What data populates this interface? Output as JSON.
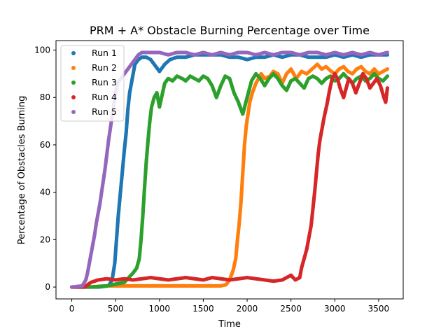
{
  "chart_data": {
    "type": "scatter",
    "title": "PRM + A* Obstacle Burning Percentage over Time",
    "xlabel": "Time",
    "ylabel": "Percentage of Obstacles Burning",
    "xlim": [
      -180,
      3780
    ],
    "ylim": [
      -5,
      104
    ],
    "xticks": [
      0,
      500,
      1000,
      1500,
      2000,
      2500,
      3000,
      3500
    ],
    "yticks": [
      0,
      20,
      40,
      60,
      80,
      100
    ],
    "grid": false,
    "legend": "upper left",
    "series": [
      {
        "name": "Run 1",
        "color": "#1f77b4",
        "points": [
          [
            0,
            0
          ],
          [
            160,
            0
          ],
          [
            300,
            0
          ],
          [
            420,
            0.5
          ],
          [
            460,
            3
          ],
          [
            490,
            10
          ],
          [
            510,
            20
          ],
          [
            530,
            30
          ],
          [
            550,
            38
          ],
          [
            575,
            48
          ],
          [
            600,
            58
          ],
          [
            620,
            65
          ],
          [
            640,
            75
          ],
          [
            660,
            82
          ],
          [
            680,
            86
          ],
          [
            700,
            90
          ],
          [
            720,
            94
          ],
          [
            760,
            96
          ],
          [
            800,
            97
          ],
          [
            850,
            97
          ],
          [
            900,
            96
          ],
          [
            960,
            93
          ],
          [
            1000,
            91
          ],
          [
            1060,
            94
          ],
          [
            1120,
            96
          ],
          [
            1200,
            97
          ],
          [
            1300,
            97
          ],
          [
            1400,
            98
          ],
          [
            1500,
            98
          ],
          [
            1600,
            98
          ],
          [
            1700,
            98
          ],
          [
            1800,
            97
          ],
          [
            1900,
            97
          ],
          [
            2000,
            96
          ],
          [
            2100,
            97
          ],
          [
            2200,
            97
          ],
          [
            2300,
            98
          ],
          [
            2400,
            97
          ],
          [
            2500,
            98
          ],
          [
            2600,
            98
          ],
          [
            2700,
            97
          ],
          [
            2800,
            97
          ],
          [
            2900,
            97
          ],
          [
            3000,
            98
          ],
          [
            3100,
            97
          ],
          [
            3200,
            98
          ],
          [
            3300,
            97
          ],
          [
            3400,
            98
          ],
          [
            3500,
            98
          ],
          [
            3600,
            98
          ]
        ]
      },
      {
        "name": "Run 2",
        "color": "#ff7f0e",
        "points": [
          [
            0,
            0
          ],
          [
            200,
            0
          ],
          [
            400,
            0.5
          ],
          [
            600,
            0.5
          ],
          [
            800,
            0.5
          ],
          [
            1000,
            0.5
          ],
          [
            1200,
            0.5
          ],
          [
            1400,
            0.5
          ],
          [
            1600,
            0.5
          ],
          [
            1700,
            0.5
          ],
          [
            1760,
            1
          ],
          [
            1800,
            3
          ],
          [
            1840,
            7
          ],
          [
            1870,
            12
          ],
          [
            1890,
            20
          ],
          [
            1910,
            27
          ],
          [
            1930,
            36
          ],
          [
            1950,
            48
          ],
          [
            1970,
            60
          ],
          [
            1990,
            68
          ],
          [
            2010,
            73
          ],
          [
            2030,
            78
          ],
          [
            2060,
            82
          ],
          [
            2100,
            86
          ],
          [
            2160,
            90
          ],
          [
            2200,
            88
          ],
          [
            2260,
            89
          ],
          [
            2300,
            91
          ],
          [
            2350,
            90
          ],
          [
            2400,
            86
          ],
          [
            2450,
            90
          ],
          [
            2500,
            92
          ],
          [
            2560,
            88
          ],
          [
            2620,
            91
          ],
          [
            2680,
            90
          ],
          [
            2740,
            92
          ],
          [
            2800,
            94
          ],
          [
            2850,
            92
          ],
          [
            2900,
            93
          ],
          [
            2960,
            91
          ],
          [
            3000,
            90
          ],
          [
            3050,
            92
          ],
          [
            3100,
            93
          ],
          [
            3150,
            91
          ],
          [
            3200,
            90
          ],
          [
            3250,
            92
          ],
          [
            3300,
            93
          ],
          [
            3350,
            91
          ],
          [
            3400,
            90
          ],
          [
            3450,
            92
          ],
          [
            3500,
            90
          ],
          [
            3550,
            91
          ],
          [
            3600,
            92
          ]
        ]
      },
      {
        "name": "Run 3",
        "color": "#2ca02c",
        "points": [
          [
            0,
            0
          ],
          [
            200,
            0
          ],
          [
            400,
            0.5
          ],
          [
            600,
            2
          ],
          [
            650,
            4
          ],
          [
            700,
            6
          ],
          [
            740,
            8
          ],
          [
            770,
            12
          ],
          [
            790,
            20
          ],
          [
            810,
            30
          ],
          [
            830,
            42
          ],
          [
            850,
            53
          ],
          [
            870,
            62
          ],
          [
            890,
            70
          ],
          [
            910,
            76
          ],
          [
            940,
            80
          ],
          [
            970,
            82
          ],
          [
            1000,
            76
          ],
          [
            1030,
            81
          ],
          [
            1060,
            86
          ],
          [
            1100,
            88
          ],
          [
            1150,
            87
          ],
          [
            1200,
            89
          ],
          [
            1260,
            88
          ],
          [
            1300,
            87
          ],
          [
            1350,
            89
          ],
          [
            1400,
            88
          ],
          [
            1450,
            87
          ],
          [
            1500,
            89
          ],
          [
            1550,
            88
          ],
          [
            1600,
            85
          ],
          [
            1650,
            80
          ],
          [
            1700,
            85
          ],
          [
            1750,
            89
          ],
          [
            1800,
            88
          ],
          [
            1850,
            82
          ],
          [
            1900,
            78
          ],
          [
            1950,
            73
          ],
          [
            2000,
            80
          ],
          [
            2050,
            87
          ],
          [
            2100,
            90
          ],
          [
            2150,
            88
          ],
          [
            2200,
            85
          ],
          [
            2250,
            88
          ],
          [
            2300,
            90
          ],
          [
            2350,
            88
          ],
          [
            2400,
            85
          ],
          [
            2450,
            83
          ],
          [
            2500,
            87
          ],
          [
            2550,
            88
          ],
          [
            2600,
            86
          ],
          [
            2650,
            84
          ],
          [
            2700,
            88
          ],
          [
            2750,
            89
          ],
          [
            2800,
            88
          ],
          [
            2850,
            86
          ],
          [
            2900,
            88
          ],
          [
            2950,
            89
          ],
          [
            3000,
            87
          ],
          [
            3050,
            88
          ],
          [
            3100,
            90
          ],
          [
            3150,
            88
          ],
          [
            3200,
            86
          ],
          [
            3250,
            88
          ],
          [
            3300,
            89
          ],
          [
            3350,
            87
          ],
          [
            3400,
            88
          ],
          [
            3450,
            90
          ],
          [
            3500,
            88
          ],
          [
            3550,
            87
          ],
          [
            3600,
            89
          ]
        ]
      },
      {
        "name": "Run 4",
        "color": "#d62728",
        "points": [
          [
            0,
            0
          ],
          [
            150,
            0
          ],
          [
            180,
            1
          ],
          [
            220,
            2
          ],
          [
            300,
            3
          ],
          [
            400,
            3.5
          ],
          [
            500,
            3
          ],
          [
            600,
            3.5
          ],
          [
            700,
            3
          ],
          [
            800,
            3.5
          ],
          [
            900,
            4
          ],
          [
            1000,
            3.5
          ],
          [
            1100,
            3
          ],
          [
            1200,
            3.5
          ],
          [
            1300,
            4
          ],
          [
            1400,
            3.5
          ],
          [
            1500,
            3
          ],
          [
            1600,
            4
          ],
          [
            1700,
            3.5
          ],
          [
            1800,
            3
          ],
          [
            1900,
            3.5
          ],
          [
            2000,
            4
          ],
          [
            2100,
            3.5
          ],
          [
            2200,
            3
          ],
          [
            2300,
            2.5
          ],
          [
            2400,
            3
          ],
          [
            2450,
            4
          ],
          [
            2500,
            5
          ],
          [
            2550,
            3
          ],
          [
            2600,
            4
          ],
          [
            2620,
            8
          ],
          [
            2650,
            12
          ],
          [
            2680,
            16
          ],
          [
            2700,
            20
          ],
          [
            2730,
            26
          ],
          [
            2750,
            33
          ],
          [
            2770,
            40
          ],
          [
            2790,
            48
          ],
          [
            2810,
            56
          ],
          [
            2830,
            62
          ],
          [
            2860,
            68
          ],
          [
            2880,
            72
          ],
          [
            2910,
            77
          ],
          [
            2940,
            83
          ],
          [
            2970,
            88
          ],
          [
            3000,
            90
          ],
          [
            3030,
            88
          ],
          [
            3060,
            84
          ],
          [
            3100,
            80
          ],
          [
            3130,
            84
          ],
          [
            3160,
            88
          ],
          [
            3200,
            86
          ],
          [
            3240,
            82
          ],
          [
            3280,
            86
          ],
          [
            3320,
            90
          ],
          [
            3360,
            88
          ],
          [
            3400,
            84
          ],
          [
            3440,
            86
          ],
          [
            3480,
            88
          ],
          [
            3520,
            85
          ],
          [
            3560,
            80
          ],
          [
            3580,
            78
          ],
          [
            3600,
            84
          ]
        ]
      },
      {
        "name": "Run 5",
        "color": "#9467bd",
        "points": [
          [
            0,
            0
          ],
          [
            120,
            0.5
          ],
          [
            160,
            3
          ],
          [
            180,
            6
          ],
          [
            200,
            10
          ],
          [
            220,
            14
          ],
          [
            240,
            18
          ],
          [
            260,
            22
          ],
          [
            280,
            27
          ],
          [
            300,
            31
          ],
          [
            320,
            35
          ],
          [
            340,
            40
          ],
          [
            360,
            45
          ],
          [
            380,
            50
          ],
          [
            400,
            56
          ],
          [
            420,
            62
          ],
          [
            440,
            67
          ],
          [
            460,
            72
          ],
          [
            480,
            77
          ],
          [
            500,
            82
          ],
          [
            520,
            86
          ],
          [
            560,
            88
          ],
          [
            600,
            90
          ],
          [
            640,
            92
          ],
          [
            680,
            94
          ],
          [
            720,
            96
          ],
          [
            760,
            98
          ],
          [
            800,
            99
          ],
          [
            900,
            99
          ],
          [
            1000,
            99
          ],
          [
            1100,
            98
          ],
          [
            1200,
            99
          ],
          [
            1300,
            99
          ],
          [
            1400,
            98
          ],
          [
            1500,
            99
          ],
          [
            1600,
            98
          ],
          [
            1700,
            99
          ],
          [
            1800,
            98
          ],
          [
            1900,
            99
          ],
          [
            2000,
            99
          ],
          [
            2100,
            98
          ],
          [
            2200,
            99
          ],
          [
            2300,
            98
          ],
          [
            2400,
            99
          ],
          [
            2500,
            99
          ],
          [
            2600,
            98
          ],
          [
            2700,
            99
          ],
          [
            2800,
            99
          ],
          [
            2900,
            98
          ],
          [
            3000,
            99
          ],
          [
            3100,
            98
          ],
          [
            3200,
            99
          ],
          [
            3300,
            98
          ],
          [
            3400,
            99
          ],
          [
            3500,
            98
          ],
          [
            3600,
            99
          ]
        ]
      }
    ]
  }
}
